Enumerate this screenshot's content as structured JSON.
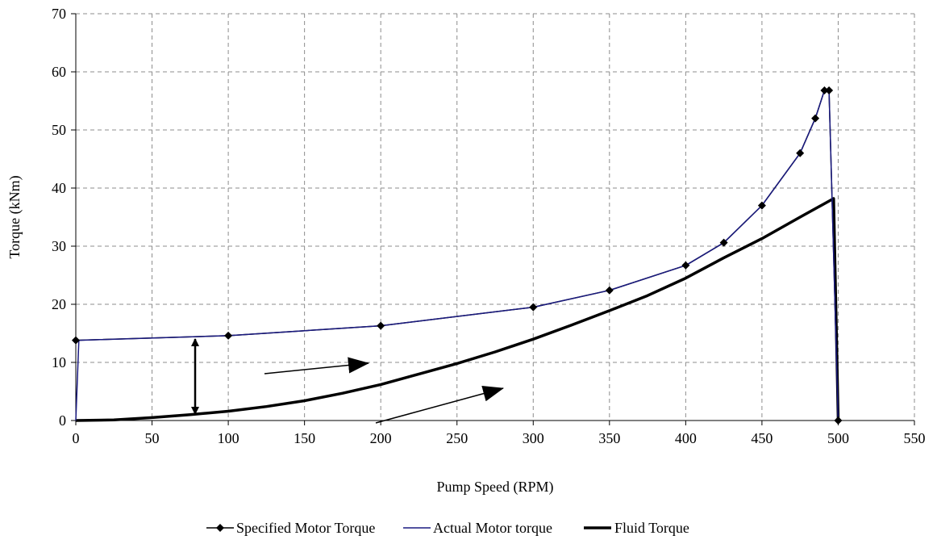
{
  "chart_data": {
    "type": "line",
    "xlabel": "Pump Speed (RPM)",
    "ylabel": "Torque (kNm)",
    "xlim": [
      0,
      550
    ],
    "ylim": [
      0,
      70
    ],
    "x_ticks": [
      0,
      50,
      100,
      150,
      200,
      250,
      300,
      350,
      400,
      450,
      500,
      550
    ],
    "y_ticks": [
      0,
      10,
      20,
      30,
      40,
      50,
      60,
      70
    ],
    "grid": true,
    "legend_position": "bottom",
    "series": [
      {
        "name": "Specified Motor Torque",
        "color": "#000000",
        "marker": "diamond",
        "x": [
          0,
          100,
          200,
          300,
          350,
          400,
          425,
          450,
          475,
          485,
          491,
          494,
          500
        ],
        "y": [
          13.8,
          14.6,
          16.3,
          19.5,
          22.4,
          26.7,
          30.6,
          37.0,
          46.0,
          52.0,
          56.8,
          56.8,
          0
        ]
      },
      {
        "name": "Actual Motor torque",
        "color": "#1a1a80",
        "x": [
          0,
          2,
          100,
          200,
          300,
          350,
          400,
          425,
          450,
          475,
          485,
          491,
          494,
          496,
          500
        ],
        "y": [
          0,
          13.8,
          14.6,
          16.3,
          19.5,
          22.4,
          26.7,
          30.6,
          37.0,
          46.0,
          52.0,
          56.8,
          56.8,
          38,
          0
        ]
      },
      {
        "name": "Fluid Torque",
        "color": "#000000",
        "x": [
          0,
          25,
          50,
          75,
          100,
          125,
          150,
          175,
          200,
          225,
          250,
          275,
          300,
          325,
          350,
          375,
          400,
          425,
          450,
          475,
          497,
          500
        ],
        "y": [
          0,
          0.1,
          0.5,
          1.0,
          1.6,
          2.4,
          3.4,
          4.7,
          6.2,
          8.0,
          9.8,
          11.8,
          14.0,
          16.4,
          18.9,
          21.5,
          24.5,
          28.0,
          31.3,
          35.0,
          38.2,
          0
        ]
      }
    ]
  }
}
